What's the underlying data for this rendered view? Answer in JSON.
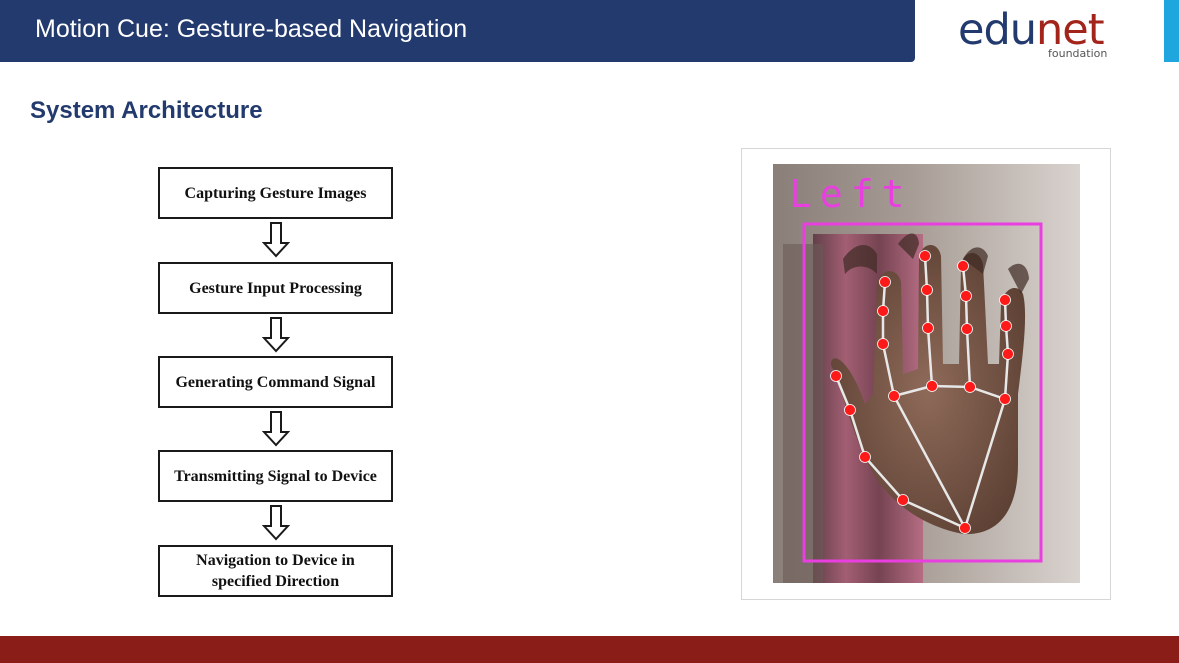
{
  "header": {
    "title": "Motion Cue: Gesture-based Navigation"
  },
  "logo": {
    "primary_part1": "edu",
    "primary_part2": "net",
    "secondary": "foundation"
  },
  "section_title": "System Architecture",
  "flowchart": {
    "steps": [
      "Capturing Gesture Images",
      "Gesture Input Processing",
      "Generating Command Signal",
      "Transmitting Signal to Device",
      "Navigation to Device in specified Direction"
    ],
    "arrow_icon": "hollow-down-arrow-icon"
  },
  "figure": {
    "detected_label": "Left",
    "label_color": "#e93ee0",
    "box_color": "#e93ee0",
    "landmark_color": "#ff1a1a",
    "connection_color": "#e8e8e8"
  },
  "colors": {
    "header": "#233a6e",
    "accent": "#1fa6df",
    "footer": "#8a1d17",
    "title": "#233a6e"
  }
}
